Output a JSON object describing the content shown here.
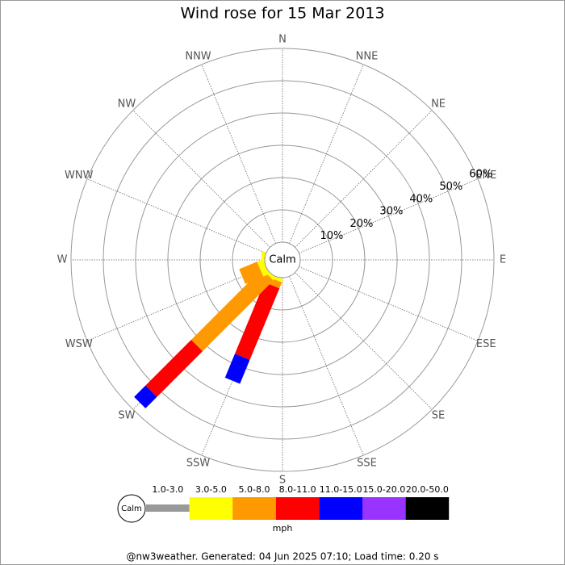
{
  "chart_data": {
    "type": "wind_rose",
    "title": "Wind rose for 15 Mar 2013",
    "directions": [
      "N",
      "NNE",
      "NE",
      "ENE",
      "E",
      "ESE",
      "SE",
      "SSE",
      "S",
      "SSW",
      "SW",
      "WSW",
      "W",
      "WNW",
      "NW",
      "NNW"
    ],
    "calm_label": "Calm",
    "rlim": [
      0,
      60
    ],
    "rticks": [
      {
        "value": 10,
        "label": "10%"
      },
      {
        "value": 20,
        "label": "20%"
      },
      {
        "value": 30,
        "label": "30%"
      },
      {
        "value": 40,
        "label": "40%"
      },
      {
        "value": 50,
        "label": "50%"
      },
      {
        "value": 60,
        "label": "60%"
      }
    ],
    "series": [
      {
        "name": "1.0-3.0",
        "color": "#999999",
        "values": [
          0,
          0,
          0,
          0,
          0,
          0,
          0,
          0,
          0,
          0,
          0,
          0,
          0,
          0,
          0,
          0
        ]
      },
      {
        "name": "3.0-5.0",
        "color": "#ffff00",
        "values": [
          0,
          0,
          0,
          0,
          0,
          0,
          0,
          0,
          0,
          1,
          1,
          2,
          1,
          0,
          0,
          0
        ]
      },
      {
        "name": "5.0-8.0",
        "color": "#ff9900",
        "values": [
          0,
          0,
          0,
          0,
          0,
          0,
          0,
          0,
          0,
          2,
          31,
          6,
          0,
          0,
          0,
          0
        ]
      },
      {
        "name": "8.0-11.0",
        "color": "#ff0000",
        "values": [
          0,
          0,
          0,
          0,
          0,
          0,
          0,
          0,
          0,
          24,
          20,
          0,
          0,
          0,
          0,
          0
        ]
      },
      {
        "name": "11.0-15.0",
        "color": "#0000ff",
        "values": [
          0,
          0,
          0,
          0,
          0,
          0,
          0,
          0,
          0,
          8,
          5,
          0,
          0,
          0,
          0,
          0
        ]
      },
      {
        "name": "15.0-20.0",
        "color": "#9933ff",
        "values": [
          0,
          0,
          0,
          0,
          0,
          0,
          0,
          0,
          0,
          0,
          0,
          0,
          0,
          0,
          0,
          0
        ]
      },
      {
        "name": "20.0-50.0",
        "color": "#000000",
        "values": [
          0,
          0,
          0,
          0,
          0,
          0,
          0,
          0,
          0,
          0,
          0,
          0,
          0,
          0,
          0,
          0
        ]
      }
    ],
    "unit": "mph",
    "footer": "@nw3weather. Generated: 04 Jun 2025 07:10; Load time: 0.20 s"
  }
}
